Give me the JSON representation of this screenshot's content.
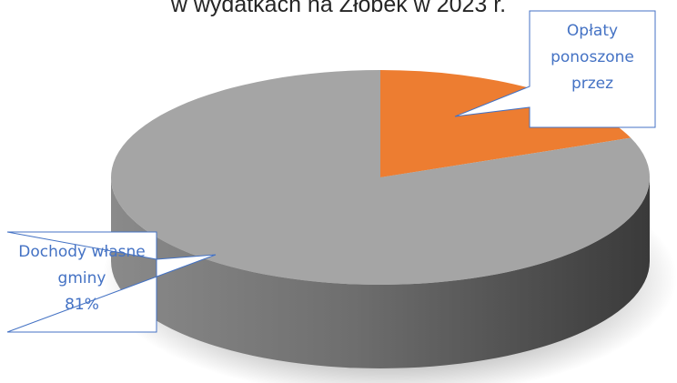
{
  "chart_data": {
    "type": "pie",
    "title": "w wydatkach na Żłobek w 2023 r.",
    "categories": [
      "Opłaty ponoszone przez",
      "Dochody własne gminy"
    ],
    "values": [
      19,
      81
    ],
    "value_labels": [
      null,
      "81%"
    ],
    "colors": [
      "#ed7d31",
      "#a5a5a5"
    ]
  }
}
